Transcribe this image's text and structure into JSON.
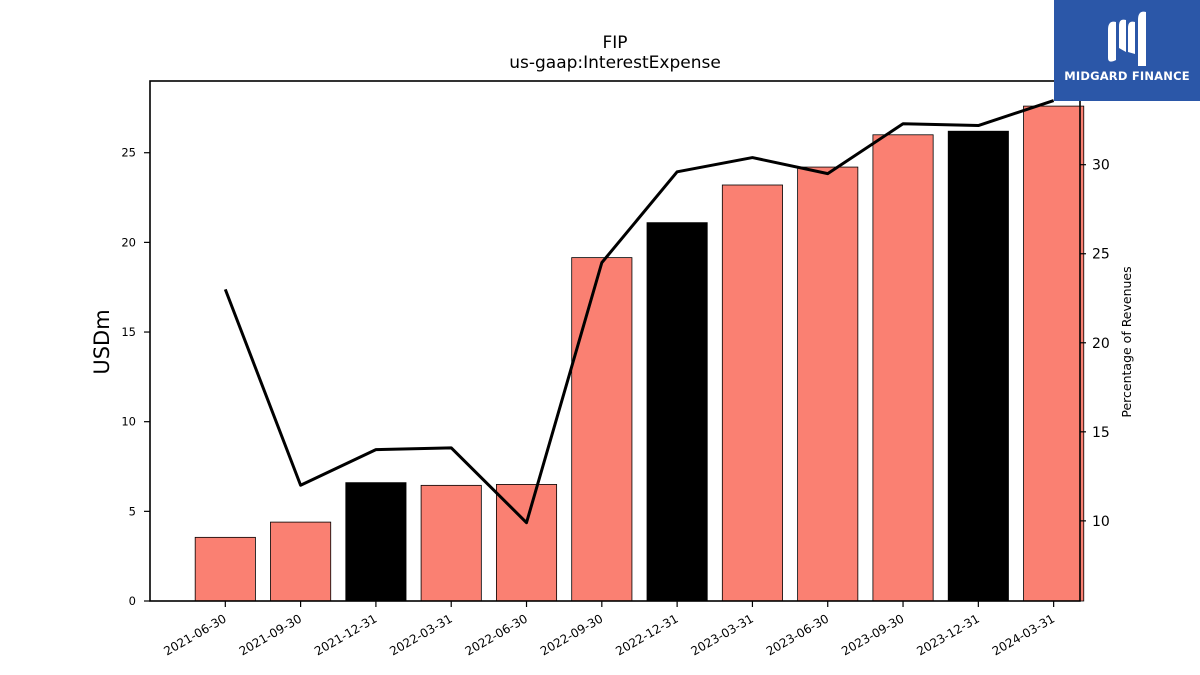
{
  "chart_data": {
    "type": "bar",
    "title": "FIP",
    "subtitle": "us-gaap:InterestExpense",
    "ylabel": "USDm",
    "y2label": "Percentage of Revenues",
    "categories": [
      "2021-06-30",
      "2021-09-30",
      "2021-12-31",
      "2022-03-31",
      "2022-06-30",
      "2022-09-30",
      "2022-12-31",
      "2023-03-31",
      "2023-06-30",
      "2023-09-30",
      "2023-12-31",
      "2024-03-31"
    ],
    "values": [
      3.55,
      4.4,
      6.6,
      6.45,
      6.5,
      19.15,
      21.1,
      23.2,
      24.2,
      26.0,
      26.2,
      27.6
    ],
    "bar_colors": [
      "#fa8072",
      "#fa8072",
      "#000000",
      "#fa8072",
      "#fa8072",
      "#fa8072",
      "#000000",
      "#fa8072",
      "#fa8072",
      "#fa8072",
      "#000000",
      "#fa8072"
    ],
    "ylim": [
      0,
      29
    ],
    "yticks": [
      0,
      5,
      10,
      15,
      20,
      25
    ],
    "line": {
      "name": "Percentage of Revenues",
      "values": [
        23.0,
        12.0,
        14.0,
        14.1,
        9.9,
        24.5,
        29.6,
        30.4,
        29.5,
        32.3,
        32.2,
        33.6
      ],
      "color": "#000000"
    },
    "y2lim": [
      5.5,
      34.7
    ],
    "y2ticks": [
      10,
      15,
      20,
      25,
      30
    ],
    "grid": false
  },
  "logo": {
    "text": "MIDGARD FINANCE",
    "icon": "midgard-logo-icon",
    "color": "#2b57a8"
  }
}
